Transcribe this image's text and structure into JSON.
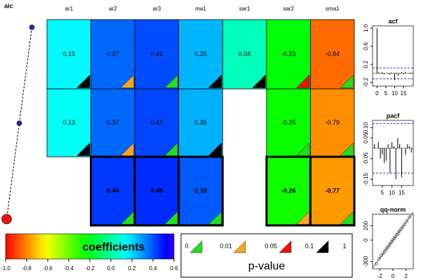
{
  "chart_data": [
    {
      "type": "coefficient-grid",
      "aic_label": "aic",
      "columns": [
        "ar1",
        "ar2",
        "ar3",
        "ma1",
        "sar1",
        "sar2",
        "sma1"
      ],
      "rows": [
        {
          "values": [
            0.15,
            0.37,
            0.41,
            0.25,
            0.04,
            -0.23,
            -0.84
          ],
          "pvalues": [
            0.5,
            0.03,
            0.001,
            0.5,
            0.5,
            0.07,
            0.001
          ]
        },
        {
          "values": [
            0.13,
            0.37,
            0.42,
            0.26,
            null,
            -0.25,
            -0.79
          ],
          "pvalues": [
            0.5,
            0.03,
            0.001,
            0.5,
            null,
            0.001,
            0.001
          ]
        },
        {
          "values": [
            null,
            0.44,
            0.46,
            0.39,
            null,
            -0.26,
            -0.77
          ],
          "pvalues": [
            null,
            0.001,
            0.001,
            0.001,
            null,
            0.03,
            0.001
          ]
        }
      ],
      "aic": [
        0.9,
        0.5,
        0.1
      ],
      "aic_lim": [
        0,
        1
      ],
      "highlight_row": 2
    },
    {
      "type": "colorbar",
      "label": "coefficients",
      "colormap": "rainbow",
      "xlim": [
        -1,
        0.6
      ],
      "xticks": [
        {
          "value": -1,
          "label": "-1.0"
        },
        -0.8,
        -0.6,
        -0.4,
        -0.2,
        {
          "value": 0,
          "label": "0.0"
        },
        0.2,
        0.4,
        0.6
      ]
    },
    {
      "type": "pvalue-legend",
      "label": "p-value",
      "breaks": [
        0,
        0.01,
        0.05,
        0.1,
        1
      ],
      "colors": [
        "#22dd22",
        "#f5a623",
        "#ee1111",
        "#000000"
      ]
    },
    {
      "type": "bar",
      "title": "acf",
      "x": [
        0,
        1,
        2,
        3,
        4,
        5,
        6,
        7,
        8,
        9,
        10,
        11,
        12,
        13,
        14,
        15,
        16,
        17,
        18,
        19,
        20
      ],
      "values": [
        1,
        0.02,
        -0.01,
        0.03,
        -0.02,
        0.0,
        0.01,
        -0.03,
        0.02,
        0.01,
        -0.15,
        0.02,
        -0.05,
        0.01,
        0.03,
        -0.02,
        0.04,
        0.0,
        -0.01,
        0.02,
        0.01
      ],
      "xlim": [
        -2.5,
        20.5
      ],
      "ylim": [
        -0.28,
        1.05
      ],
      "xticks": [
        0,
        5,
        10,
        15
      ],
      "yticks": [
        -0.2,
        0.2,
        0.6,
        {
          "value": 1,
          "label": "1.0"
        }
      ],
      "hlines": [
        0.12,
        -0.12
      ],
      "color": "#000000",
      "hline_color": "#3333cc"
    },
    {
      "type": "bar",
      "title": "pacf",
      "x": [
        1,
        2,
        3,
        4,
        5,
        6,
        7,
        8,
        9,
        10,
        11,
        12,
        13,
        14,
        15,
        16,
        17,
        18,
        19,
        20
      ],
      "values": [
        0.02,
        0.0,
        0.03,
        -0.05,
        -0.03,
        -0.07,
        -0.06,
        0.02,
        -0.12,
        0.03,
        0.01,
        -0.15,
        0.05,
        0.02,
        -0.14,
        0.0,
        -0.03,
        0.02,
        0.01,
        -0.02
      ],
      "xlim": [
        0,
        21
      ],
      "ylim": [
        -0.18,
        0.135
      ],
      "xticks": [
        5,
        10,
        15
      ],
      "yticks": [
        -0.15,
        -0.05,
        0.05,
        {
          "value": 0.1,
          "label": "0.10"
        }
      ],
      "hlines": [
        0.12,
        -0.12
      ],
      "color": "#000000",
      "hline_color": "#3333cc"
    },
    {
      "type": "scatter",
      "title": "qq-norm",
      "x": [
        -2.5,
        -2.1,
        -1.8,
        -1.5,
        -1.25,
        -1.0,
        -0.8,
        -0.6,
        -0.4,
        -0.2,
        0.0,
        0.2,
        0.4,
        0.6,
        0.8,
        1.0,
        1.25,
        1.5,
        1.8,
        2.1,
        2.5
      ],
      "values": [
        -330,
        -260,
        -215,
        -185,
        -155,
        -125,
        -100,
        -75,
        -50,
        -25,
        0,
        25,
        50,
        75,
        100,
        125,
        155,
        185,
        220,
        265,
        320
      ],
      "xlim": [
        -3.1,
        3.1
      ],
      "ylim": [
        -400,
        360
      ],
      "xticks": [
        -2,
        0,
        2
      ],
      "yticks": [
        -300,
        0,
        200
      ],
      "color": "#444444"
    }
  ]
}
